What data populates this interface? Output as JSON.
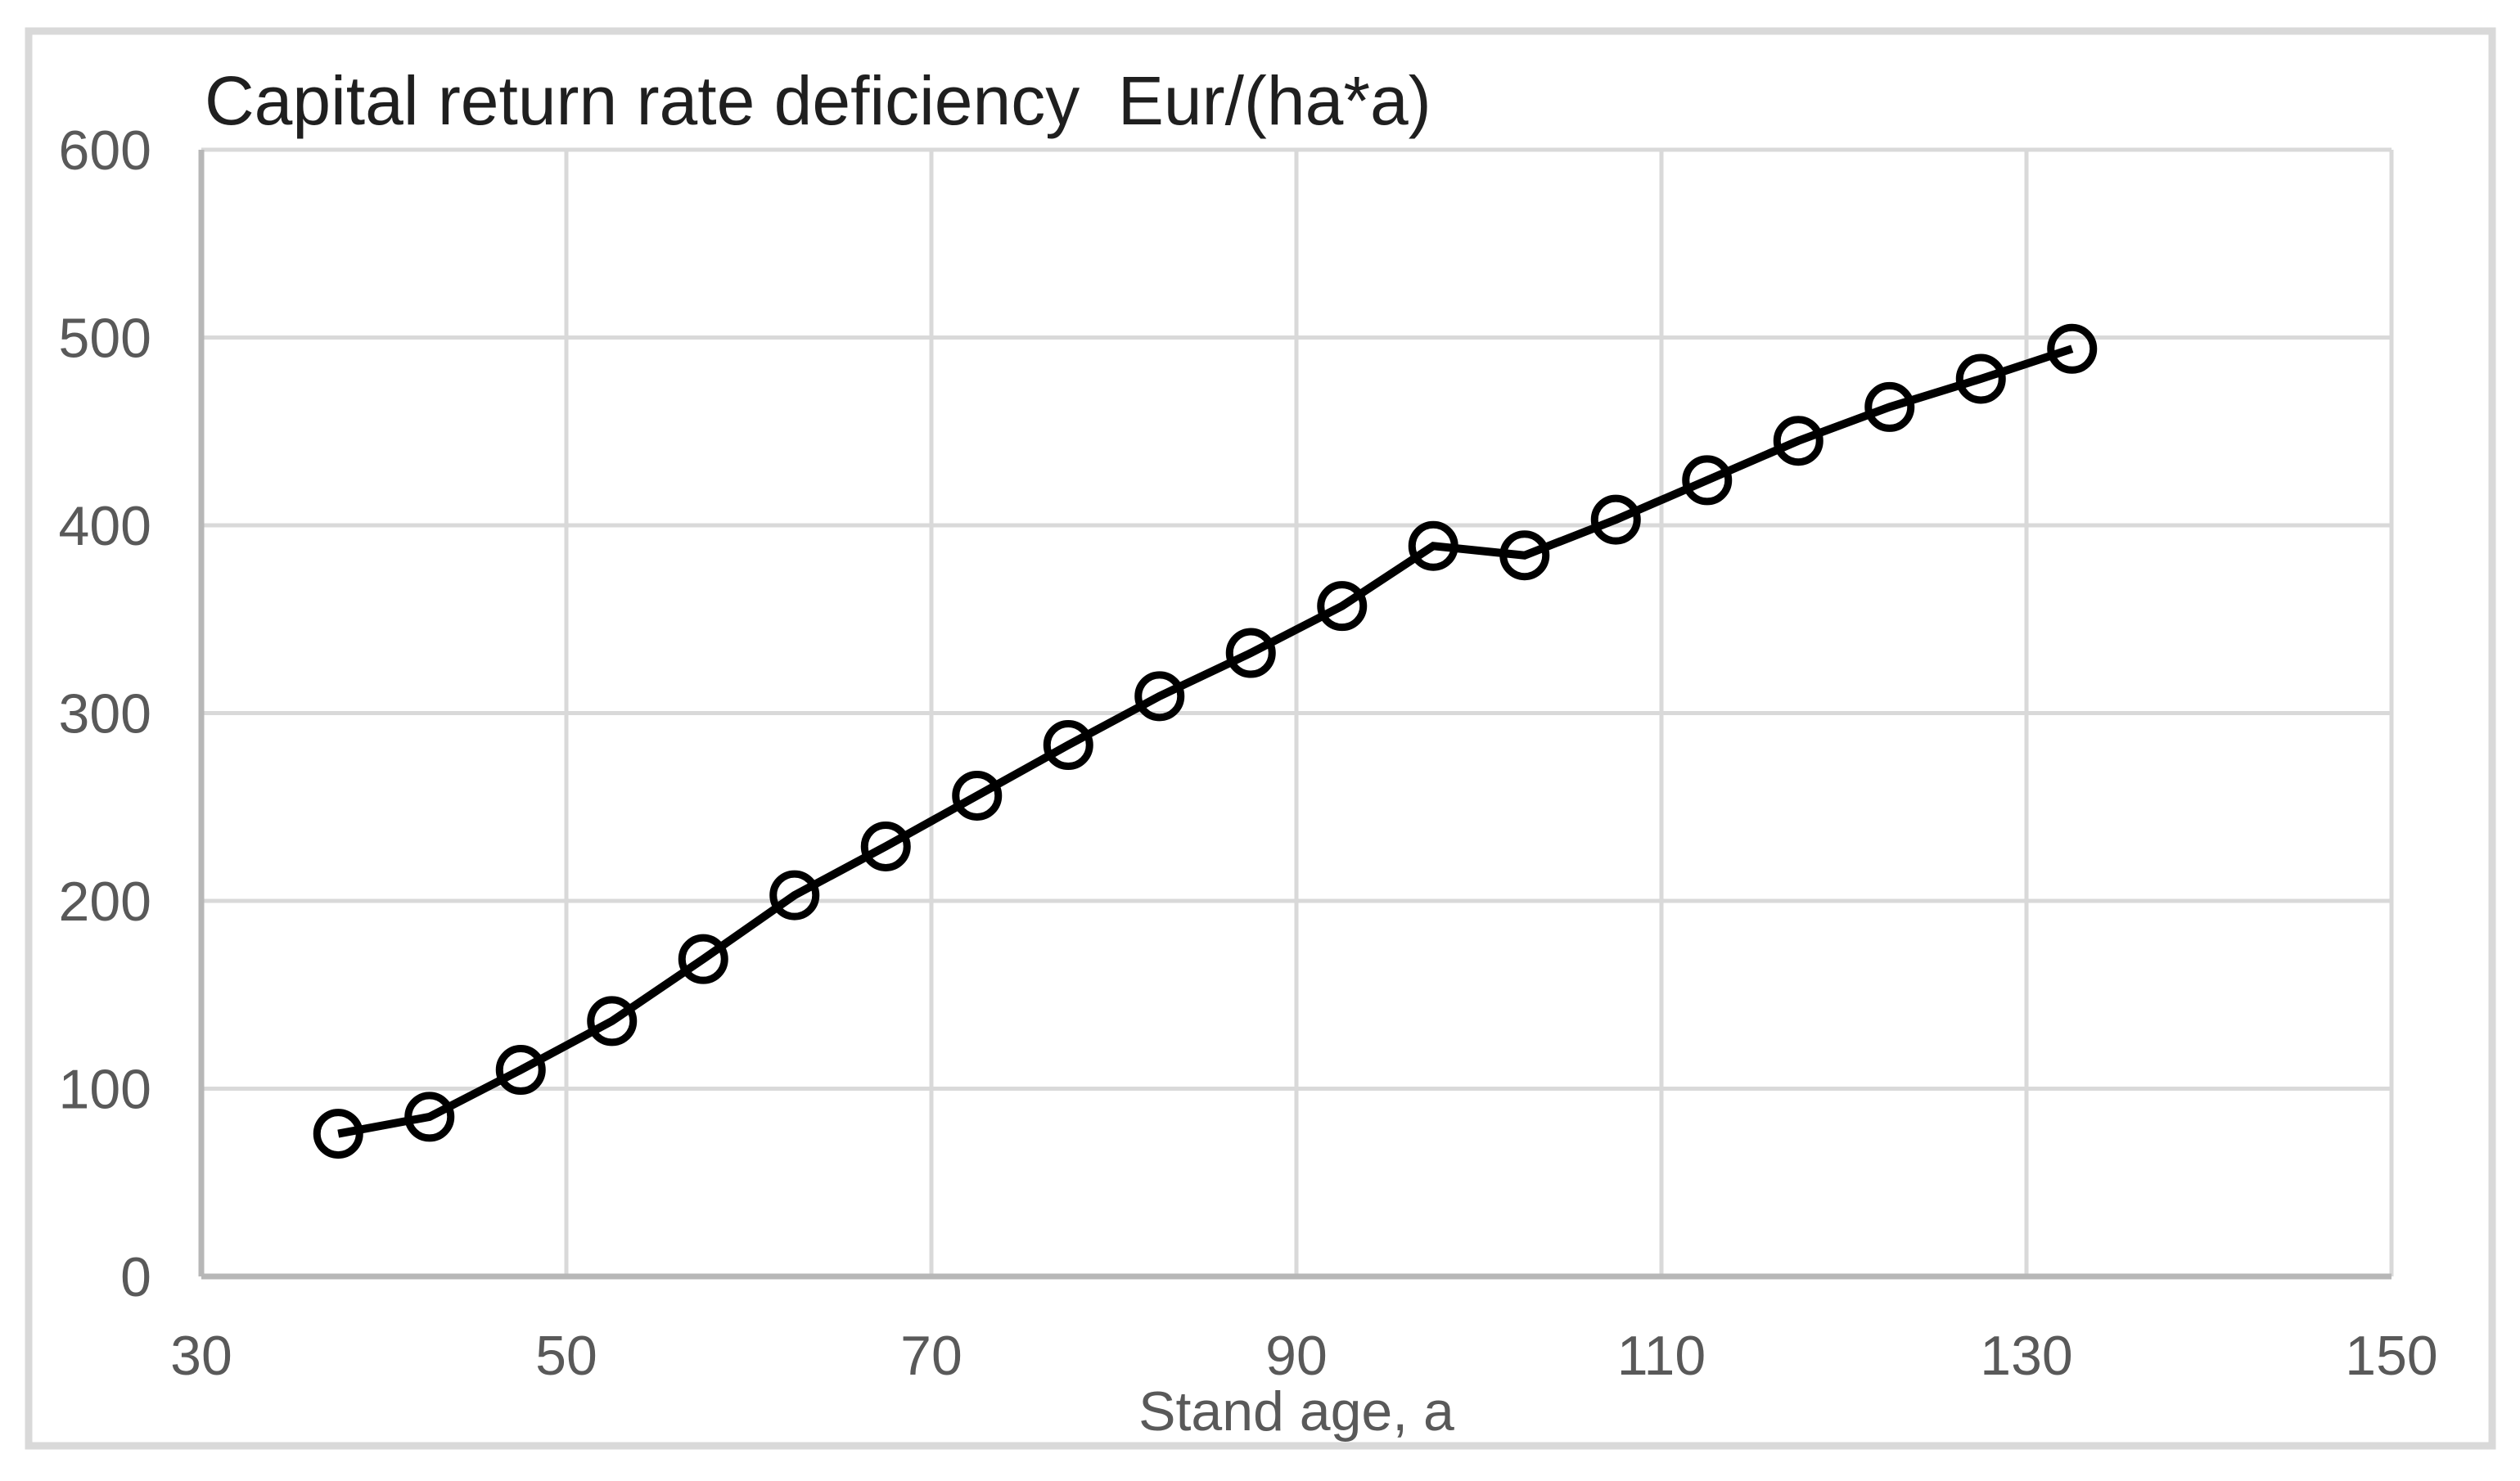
{
  "chart_data": {
    "type": "line",
    "title": "Capital return rate deficiency  Eur/(ha*a)",
    "xlabel": "Stand age, a",
    "ylabel": "",
    "xlim": [
      30,
      150
    ],
    "ylim": [
      0,
      600
    ],
    "x_ticks": [
      30,
      50,
      70,
      90,
      110,
      130,
      150
    ],
    "y_ticks": [
      0,
      100,
      200,
      300,
      400,
      500,
      600
    ],
    "grid": true,
    "legend": false,
    "series": [
      {
        "name": "Capital return rate deficiency",
        "marker": "open-circle",
        "color": "#000000",
        "x": [
          37.5,
          42.5,
          47.5,
          52.5,
          57.5,
          62.5,
          67.5,
          72.5,
          77.5,
          82.5,
          87.5,
          92.5,
          97.5,
          102.5,
          107.5,
          112.5,
          117.5,
          122.5,
          127.5,
          132.5
        ],
        "y": [
          76,
          85,
          110,
          136,
          169,
          203,
          229,
          256,
          283,
          309,
          332,
          357,
          389,
          384,
          403,
          424,
          445,
          463,
          478,
          494
        ]
      }
    ]
  },
  "colors": {
    "background": "#ffffff",
    "chart_border": "#d9d9d9",
    "gridline": "#d9d9d9",
    "axis_line": "#b7b7b7",
    "tick_label": "#595959",
    "title_text": "#1f1f1f",
    "series_line": "#000000"
  }
}
